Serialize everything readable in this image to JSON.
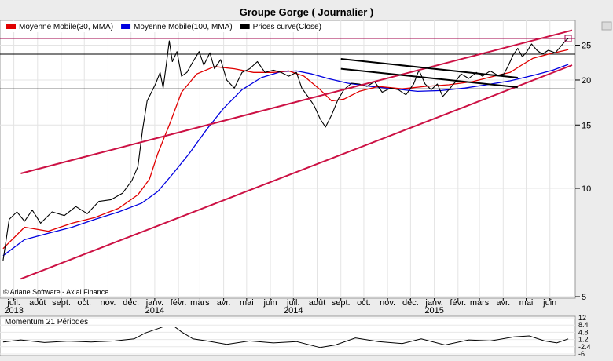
{
  "title": "Groupe Gorge  ( Journalier )",
  "copyright": "© Ariane Software - Axial Finance",
  "colors": {
    "price": "#000000",
    "mma30": "#e00000",
    "mma100": "#0000e0",
    "channel": "#cc1144",
    "resistance": "#a0004a",
    "trend": "#000000"
  },
  "chart_data": [
    {
      "type": "line",
      "title": "Groupe Gorge  ( Journalier )",
      "legend_position": "top-left",
      "legend": [
        {
          "label": "Moyenne Mobile(30, MMA)",
          "color": "#e00000"
        },
        {
          "label": "Moyenne Mobile(100, MMA)",
          "color": "#0000e0"
        },
        {
          "label": "Prices curve(Close)",
          "color": "#000000"
        }
      ],
      "grid": true,
      "y_scale": "log",
      "y_ticks": [
        5,
        10,
        15,
        20,
        25
      ],
      "ylim": [
        5,
        29
      ],
      "x_range": [
        "2013-06-15",
        "2015-06-30"
      ],
      "x_ticks": [
        {
          "label": "juil.",
          "date": "2013-07-01"
        },
        {
          "label": "août",
          "date": "2013-08-01"
        },
        {
          "label": "sept.",
          "date": "2013-09-01"
        },
        {
          "label": "oct.",
          "date": "2013-10-01"
        },
        {
          "label": "nov.",
          "date": "2013-11-01"
        },
        {
          "label": "déc.",
          "date": "2013-12-01"
        },
        {
          "label": "janv.",
          "date": "2014-01-01"
        },
        {
          "label": "févr.",
          "date": "2014-02-01"
        },
        {
          "label": "mars",
          "date": "2014-03-01"
        },
        {
          "label": "avr.",
          "date": "2014-04-01"
        },
        {
          "label": "mai",
          "date": "2014-05-01"
        },
        {
          "label": "juin",
          "date": "2014-06-01"
        },
        {
          "label": "juil.",
          "date": "2014-07-01"
        },
        {
          "label": "août",
          "date": "2014-08-01"
        },
        {
          "label": "sept.",
          "date": "2014-09-01"
        },
        {
          "label": "oct.",
          "date": "2014-10-01"
        },
        {
          "label": "nov.",
          "date": "2014-11-01"
        },
        {
          "label": "déc.",
          "date": "2014-12-01"
        },
        {
          "label": "janv.",
          "date": "2015-01-01"
        },
        {
          "label": "févr.",
          "date": "2015-02-01"
        },
        {
          "label": "mars",
          "date": "2015-03-01"
        },
        {
          "label": "avr.",
          "date": "2015-04-01"
        },
        {
          "label": "mai",
          "date": "2015-05-01"
        },
        {
          "label": "juin",
          "date": "2015-06-01"
        }
      ],
      "year_labels": [
        {
          "label": "2013",
          "date": "2013-07-01"
        },
        {
          "label": "2014",
          "date": "2014-01-01"
        },
        {
          "label": "2014",
          "date": "2014-07-01"
        },
        {
          "label": "2015",
          "date": "2015-01-01"
        }
      ],
      "horizontal_levels": [
        26.1,
        23.6,
        18.9
      ],
      "series": [
        {
          "name": "Prices curve(Close)",
          "key": "price",
          "color": "#000000",
          "points": [
            [
              "2013-06-17",
              6.3
            ],
            [
              "2013-06-25",
              8.2
            ],
            [
              "2013-07-05",
              8.6
            ],
            [
              "2013-07-15",
              8.1
            ],
            [
              "2013-07-25",
              8.7
            ],
            [
              "2013-08-05",
              8.0
            ],
            [
              "2013-08-20",
              8.6
            ],
            [
              "2013-09-05",
              8.4
            ],
            [
              "2013-09-20",
              8.9
            ],
            [
              "2013-10-05",
              8.5
            ],
            [
              "2013-10-20",
              9.2
            ],
            [
              "2013-11-05",
              9.3
            ],
            [
              "2013-11-20",
              9.7
            ],
            [
              "2013-12-02",
              10.5
            ],
            [
              "2013-12-10",
              11.5
            ],
            [
              "2013-12-16",
              14.5
            ],
            [
              "2013-12-22",
              17.5
            ],
            [
              "2014-01-02",
              19.5
            ],
            [
              "2014-01-08",
              21.0
            ],
            [
              "2014-01-12",
              19.0
            ],
            [
              "2014-01-16",
              22.0
            ],
            [
              "2014-01-20",
              25.7
            ],
            [
              "2014-01-24",
              22.5
            ],
            [
              "2014-01-30",
              24.0
            ],
            [
              "2014-02-05",
              20.5
            ],
            [
              "2014-02-12",
              21.0
            ],
            [
              "2014-02-20",
              22.5
            ],
            [
              "2014-02-28",
              24.0
            ],
            [
              "2014-03-06",
              22.0
            ],
            [
              "2014-03-14",
              23.8
            ],
            [
              "2014-03-20",
              21.5
            ],
            [
              "2014-03-28",
              22.8
            ],
            [
              "2014-04-05",
              20.0
            ],
            [
              "2014-04-15",
              19.0
            ],
            [
              "2014-04-25",
              21.0
            ],
            [
              "2014-05-05",
              21.5
            ],
            [
              "2014-05-15",
              22.5
            ],
            [
              "2014-05-25",
              21.0
            ],
            [
              "2014-06-05",
              21.3
            ],
            [
              "2014-06-15",
              21.0
            ],
            [
              "2014-06-25",
              20.5
            ],
            [
              "2014-07-05",
              21.0
            ],
            [
              "2014-07-12",
              19.0
            ],
            [
              "2014-07-20",
              18.0
            ],
            [
              "2014-07-28",
              17.0
            ],
            [
              "2014-08-05",
              15.6
            ],
            [
              "2014-08-12",
              14.8
            ],
            [
              "2014-08-20",
              16.0
            ],
            [
              "2014-08-28",
              17.6
            ],
            [
              "2014-09-05",
              18.8
            ],
            [
              "2014-09-15",
              19.6
            ],
            [
              "2014-09-25",
              19.5
            ],
            [
              "2014-10-05",
              19.2
            ],
            [
              "2014-10-15",
              19.8
            ],
            [
              "2014-10-25",
              18.5
            ],
            [
              "2014-11-05",
              19.0
            ],
            [
              "2014-11-15",
              18.8
            ],
            [
              "2014-11-25",
              18.2
            ],
            [
              "2014-12-05",
              19.5
            ],
            [
              "2014-12-12",
              21.3
            ],
            [
              "2014-12-20",
              19.5
            ],
            [
              "2014-12-28",
              18.8
            ],
            [
              "2015-01-05",
              19.5
            ],
            [
              "2015-01-12",
              18.0
            ],
            [
              "2015-01-20",
              18.8
            ],
            [
              "2015-01-28",
              19.7
            ],
            [
              "2015-02-05",
              20.8
            ],
            [
              "2015-02-15",
              20.2
            ],
            [
              "2015-02-25",
              21.0
            ],
            [
              "2015-03-05",
              20.5
            ],
            [
              "2015-03-15",
              21.2
            ],
            [
              "2015-03-25",
              20.6
            ],
            [
              "2015-04-02",
              20.8
            ],
            [
              "2015-04-08",
              22.0
            ],
            [
              "2015-04-14",
              23.5
            ],
            [
              "2015-04-20",
              24.5
            ],
            [
              "2015-04-26",
              23.2
            ],
            [
              "2015-05-02",
              24.0
            ],
            [
              "2015-05-08",
              25.2
            ],
            [
              "2015-05-15",
              24.2
            ],
            [
              "2015-05-22",
              23.6
            ],
            [
              "2015-05-30",
              24.2
            ],
            [
              "2015-06-08",
              23.8
            ],
            [
              "2015-06-15",
              24.8
            ],
            [
              "2015-06-22",
              25.8
            ],
            [
              "2015-06-25",
              26.1
            ]
          ]
        },
        {
          "name": "Moyenne Mobile(30, MMA)",
          "key": "mma30",
          "color": "#e00000",
          "points": [
            [
              "2013-06-17",
              6.8
            ],
            [
              "2013-07-15",
              7.8
            ],
            [
              "2013-08-15",
              7.6
            ],
            [
              "2013-09-15",
              8.0
            ],
            [
              "2013-10-15",
              8.3
            ],
            [
              "2013-11-15",
              8.8
            ],
            [
              "2013-12-10",
              9.6
            ],
            [
              "2013-12-25",
              10.6
            ],
            [
              "2014-01-05",
              12.5
            ],
            [
              "2014-01-20",
              15.0
            ],
            [
              "2014-02-05",
              18.5
            ],
            [
              "2014-02-25",
              20.8
            ],
            [
              "2014-03-20",
              21.8
            ],
            [
              "2014-04-15",
              21.5
            ],
            [
              "2014-05-10",
              21.0
            ],
            [
              "2014-06-05",
              21.0
            ],
            [
              "2014-06-25",
              21.2
            ],
            [
              "2014-07-15",
              20.5
            ],
            [
              "2014-08-05",
              18.8
            ],
            [
              "2014-08-20",
              17.5
            ],
            [
              "2014-09-05",
              17.7
            ],
            [
              "2014-09-25",
              18.6
            ],
            [
              "2014-10-20",
              19.2
            ],
            [
              "2014-11-20",
              18.9
            ],
            [
              "2014-12-20",
              19.2
            ],
            [
              "2015-01-20",
              19.4
            ],
            [
              "2015-02-20",
              19.8
            ],
            [
              "2015-03-20",
              20.5
            ],
            [
              "2015-04-10",
              21.0
            ],
            [
              "2015-04-25",
              22.0
            ],
            [
              "2015-05-10",
              23.0
            ],
            [
              "2015-05-30",
              23.6
            ],
            [
              "2015-06-25",
              24.3
            ]
          ]
        },
        {
          "name": "Moyenne Mobile(100, MMA)",
          "key": "mma100",
          "color": "#0000e0",
          "points": [
            [
              "2013-06-17",
              6.5
            ],
            [
              "2013-07-15",
              7.2
            ],
            [
              "2013-08-15",
              7.5
            ],
            [
              "2013-09-15",
              7.8
            ],
            [
              "2013-10-15",
              8.2
            ],
            [
              "2013-11-15",
              8.6
            ],
            [
              "2013-12-15",
              9.1
            ],
            [
              "2014-01-05",
              9.8
            ],
            [
              "2014-01-25",
              11.0
            ],
            [
              "2014-02-15",
              12.5
            ],
            [
              "2014-03-10",
              14.6
            ],
            [
              "2014-04-01",
              16.7
            ],
            [
              "2014-04-25",
              18.8
            ],
            [
              "2014-05-20",
              20.3
            ],
            [
              "2014-06-15",
              21.1
            ],
            [
              "2014-07-05",
              21.2
            ],
            [
              "2014-07-25",
              20.8
            ],
            [
              "2014-08-15",
              20.2
            ],
            [
              "2014-09-10",
              19.6
            ],
            [
              "2014-10-10",
              19.2
            ],
            [
              "2014-11-10",
              18.9
            ],
            [
              "2014-12-10",
              18.6
            ],
            [
              "2015-01-10",
              18.7
            ],
            [
              "2015-02-10",
              19.0
            ],
            [
              "2015-03-10",
              19.4
            ],
            [
              "2015-04-10",
              19.9
            ],
            [
              "2015-05-10",
              20.6
            ],
            [
              "2015-06-05",
              21.3
            ],
            [
              "2015-06-25",
              22.1
            ]
          ]
        }
      ],
      "trend_lines": [
        {
          "key": "channel",
          "from": [
            "2013-07-10",
            11.0
          ],
          "to": [
            "2015-06-30",
            27.5
          ]
        },
        {
          "key": "channel",
          "from": [
            "2013-07-10",
            5.6
          ],
          "to": [
            "2015-06-30",
            22.0
          ]
        },
        {
          "key": "trend",
          "from": [
            "2014-09-01",
            22.9
          ],
          "to": [
            "2015-04-20",
            20.3
          ]
        },
        {
          "key": "trend",
          "from": [
            "2014-09-01",
            21.5
          ],
          "to": [
            "2015-04-20",
            19.1
          ]
        }
      ]
    },
    {
      "type": "line",
      "title": "Momentum 21 Périodes",
      "grid": true,
      "y_ticks": [
        12,
        8.4,
        4.8,
        1.2,
        -2.4,
        -6
      ],
      "ylim": [
        -6,
        12
      ],
      "series": [
        {
          "name": "Momentum 21 Périodes",
          "key": "momentum",
          "color": "#000000",
          "points": [
            [
              "2013-06-17",
              0.0
            ],
            [
              "2013-07-10",
              1.0
            ],
            [
              "2013-08-10",
              -0.3
            ],
            [
              "2013-09-10",
              0.4
            ],
            [
              "2013-10-10",
              0.0
            ],
            [
              "2013-11-10",
              0.5
            ],
            [
              "2013-12-05",
              1.5
            ],
            [
              "2013-12-20",
              4.5
            ],
            [
              "2014-01-08",
              7.0
            ],
            [
              "2014-01-22",
              9.0
            ],
            [
              "2014-02-05",
              5.0
            ],
            [
              "2014-02-20",
              1.5
            ],
            [
              "2014-03-10",
              0.5
            ],
            [
              "2014-04-05",
              -1.2
            ],
            [
              "2014-05-05",
              0.5
            ],
            [
              "2014-06-05",
              -0.5
            ],
            [
              "2014-07-05",
              0.2
            ],
            [
              "2014-08-05",
              -2.8
            ],
            [
              "2014-08-25",
              -1.5
            ],
            [
              "2014-09-20",
              2.0
            ],
            [
              "2014-10-20",
              0.2
            ],
            [
              "2014-11-20",
              -0.8
            ],
            [
              "2014-12-15",
              1.5
            ],
            [
              "2015-01-15",
              -1.5
            ],
            [
              "2015-02-15",
              1.0
            ],
            [
              "2015-03-15",
              0.5
            ],
            [
              "2015-04-15",
              2.5
            ],
            [
              "2015-05-05",
              3.0
            ],
            [
              "2015-05-25",
              0.5
            ],
            [
              "2015-06-10",
              -0.5
            ],
            [
              "2015-06-25",
              1.5
            ]
          ]
        }
      ]
    }
  ]
}
